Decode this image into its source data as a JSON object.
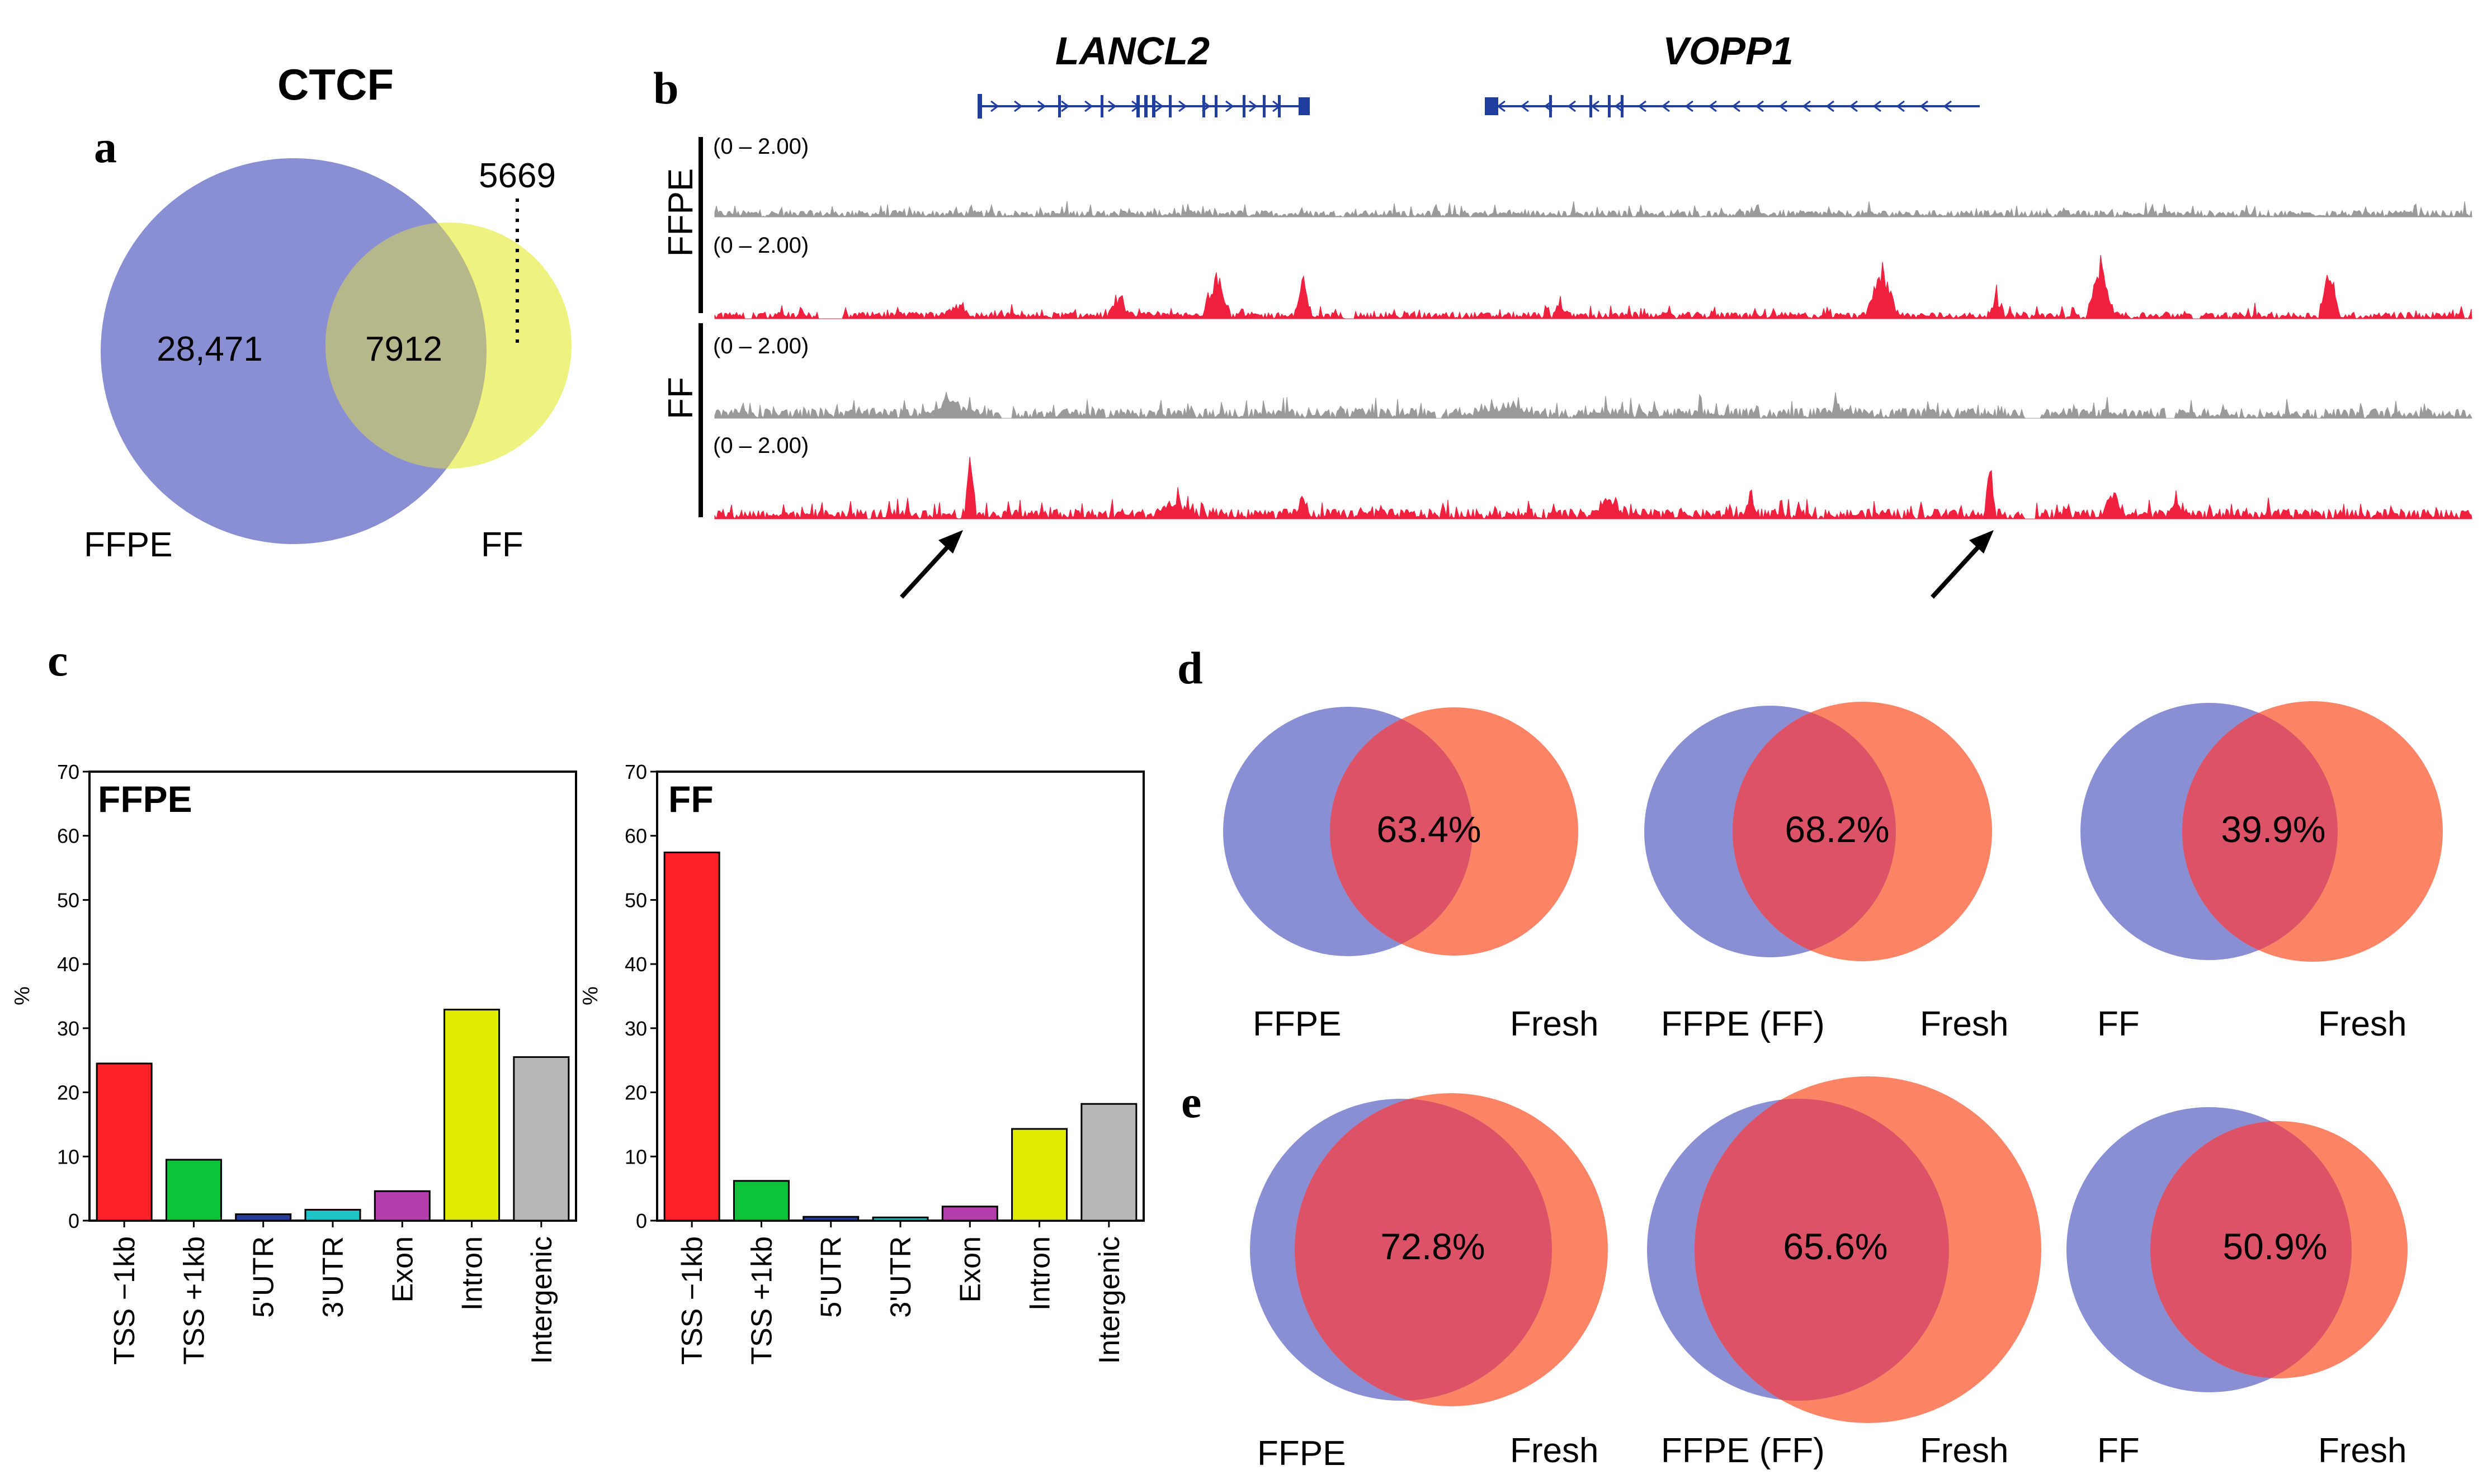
{
  "colors": {
    "ffpe_blue": "#8a8fd3",
    "ff_yellow": "#eef27f",
    "fresh_orange": "#fb8466",
    "overlap_red": "#dc5266",
    "ff_overlap": "#b7b78c",
    "track_grey": "#9a9a9a",
    "track_red": "#f1203f",
    "gene_blue": "#1f3ea0"
  },
  "panel_a": {
    "label": "a",
    "title": "CTCF",
    "ffpe_only": "28,471",
    "overlap": "7912",
    "ff_only": "5669",
    "ffpe_label": "FFPE",
    "ff_label": "FF"
  },
  "panel_b": {
    "label": "b",
    "genes": [
      "LANCL2",
      "VOPP1"
    ],
    "groups": [
      "FFPE",
      "FF"
    ],
    "range_labels": [
      "(0 – 2.00)",
      "(0 – 2.00)",
      "(0 – 2.00)",
      "(0 – 2.00)"
    ]
  },
  "panel_c": {
    "label": "c",
    "chart_data": [
      {
        "type": "bar",
        "title": "FFPE",
        "ylabel": "%",
        "ylim": [
          0,
          70
        ],
        "yticks": [
          "0",
          "10",
          "20",
          "30",
          "40",
          "50",
          "60",
          "70"
        ],
        "categories": [
          "TSS −1kb",
          "TSS +1kb",
          "5'UTR",
          "3'UTR",
          "Exon",
          "Intron",
          "Intergenic"
        ],
        "values": [
          24.5,
          9.5,
          1.0,
          1.7,
          4.6,
          32.9,
          25.5
        ],
        "colors": [
          "#fe2228",
          "#0dc33a",
          "#283c9c",
          "#1fc4c6",
          "#b23dab",
          "#e0ea00",
          "#b7b7b7"
        ]
      },
      {
        "type": "bar",
        "title": "FF",
        "ylabel": "%",
        "ylim": [
          0,
          70
        ],
        "yticks": [
          "0",
          "10",
          "20",
          "30",
          "40",
          "50",
          "60",
          "70"
        ],
        "categories": [
          "TSS −1kb",
          "TSS +1kb",
          "5'UTR",
          "3'UTR",
          "Exon",
          "Intron",
          "Intergenic"
        ],
        "values": [
          57.4,
          6.2,
          0.6,
          0.5,
          2.2,
          14.3,
          18.2
        ],
        "colors": [
          "#fe2228",
          "#0dc33a",
          "#283c9c",
          "#1fc4c6",
          "#b23dab",
          "#e0ea00",
          "#b7b7b7"
        ]
      }
    ]
  },
  "panel_d": {
    "label": "d",
    "venns": [
      {
        "pct": "63.4%",
        "left": "FFPE",
        "right": "Fresh"
      },
      {
        "pct": "68.2%",
        "left": "FFPE (FF)",
        "right": "Fresh"
      },
      {
        "pct": "39.9%",
        "left": "FF",
        "right": "Fresh"
      }
    ]
  },
  "panel_e": {
    "label": "e",
    "venns": [
      {
        "pct": "72.8%",
        "left": "FFPE",
        "right": "Fresh"
      },
      {
        "pct": "65.6%",
        "left": "FFPE (FF)",
        "right": "Fresh"
      },
      {
        "pct": "50.9%",
        "left": "FF",
        "right": "Fresh"
      }
    ]
  }
}
